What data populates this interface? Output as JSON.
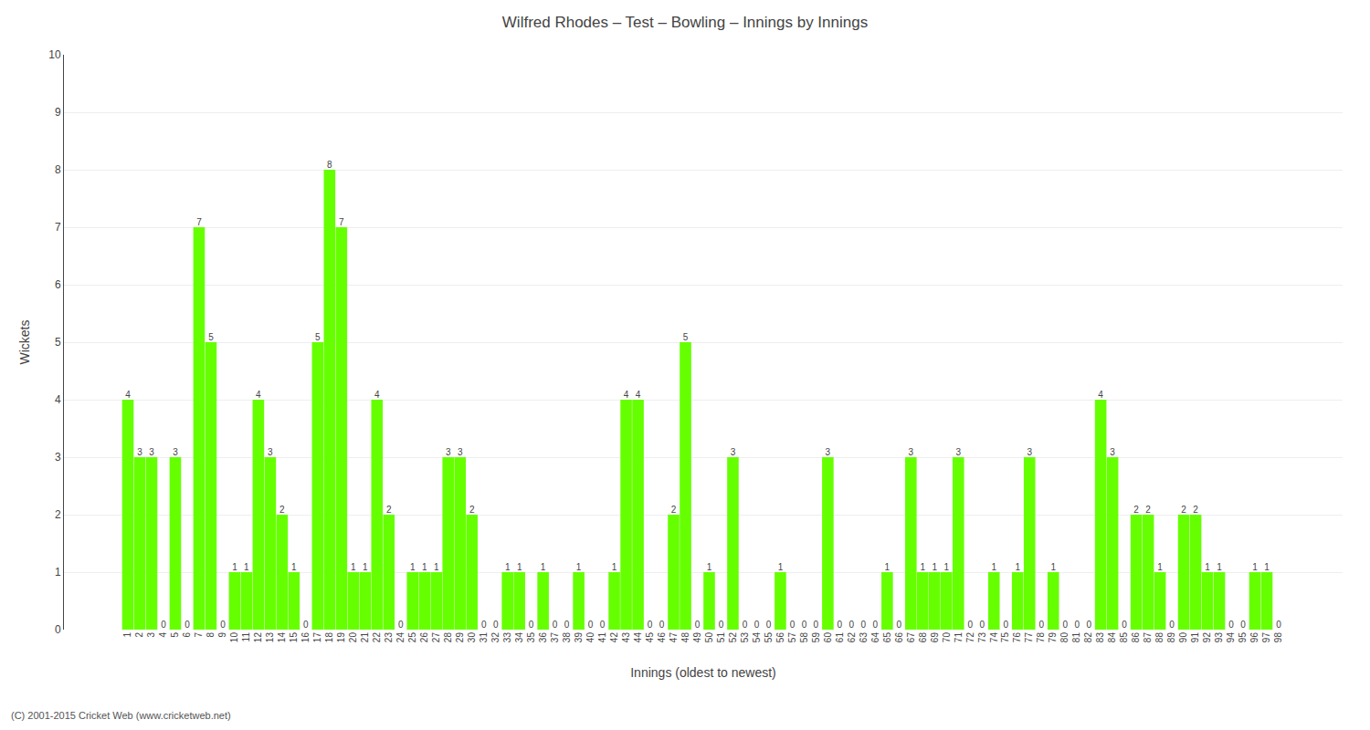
{
  "chart_data": {
    "type": "bar",
    "title": "Wilfred Rhodes – Test – Bowling – Innings by Innings",
    "xlabel": "Innings (oldest to newest)",
    "ylabel": "Wickets",
    "annotations": [
      "(C) 2001-2015 Cricket Web (www.cricketweb.net)"
    ],
    "categories": [
      "1",
      "2",
      "3",
      "4",
      "5",
      "6",
      "7",
      "8",
      "9",
      "10",
      "11",
      "12",
      "13",
      "14",
      "15",
      "16",
      "17",
      "18",
      "19",
      "20",
      "21",
      "22",
      "23",
      "24",
      "25",
      "26",
      "27",
      "28",
      "29",
      "30",
      "31",
      "32",
      "33",
      "34",
      "35",
      "36",
      "37",
      "38",
      "39",
      "40",
      "41",
      "42",
      "43",
      "44",
      "45",
      "46",
      "47",
      "48",
      "49",
      "50",
      "51",
      "52",
      "53",
      "54",
      "55",
      "56",
      "57",
      "58",
      "59",
      "60",
      "61",
      "62",
      "63",
      "64",
      "65",
      "66",
      "67",
      "68",
      "69",
      "70",
      "71",
      "72",
      "73",
      "74",
      "75",
      "76",
      "77",
      "78",
      "79",
      "80",
      "81",
      "82",
      "83",
      "84",
      "85",
      "86",
      "87",
      "88",
      "89",
      "90",
      "91",
      "92",
      "93",
      "94",
      "95",
      "96",
      "97",
      "98"
    ],
    "values": [
      4,
      3,
      3,
      0,
      3,
      0,
      7,
      5,
      0,
      1,
      1,
      4,
      3,
      2,
      1,
      0,
      5,
      8,
      7,
      1,
      1,
      4,
      2,
      0,
      1,
      1,
      1,
      3,
      3,
      2,
      0,
      0,
      1,
      1,
      0,
      1,
      0,
      0,
      1,
      0,
      0,
      1,
      4,
      4,
      0,
      0,
      2,
      5,
      0,
      1,
      0,
      3,
      0,
      0,
      0,
      1,
      0,
      0,
      0,
      3,
      0,
      0,
      0,
      0,
      1,
      0,
      3,
      1,
      1,
      1,
      3,
      0,
      0,
      1,
      0,
      1,
      3,
      0,
      1,
      0,
      0,
      0,
      4,
      3,
      0,
      2,
      2,
      1,
      0,
      2,
      2,
      1,
      1,
      0,
      0,
      1,
      1,
      0
    ],
    "color": "#66ff00",
    "ylim": [
      0,
      10
    ],
    "yticks": [
      0,
      1,
      2,
      3,
      4,
      5,
      6,
      7,
      8,
      9,
      10
    ],
    "grid": true,
    "data_labels": true
  }
}
